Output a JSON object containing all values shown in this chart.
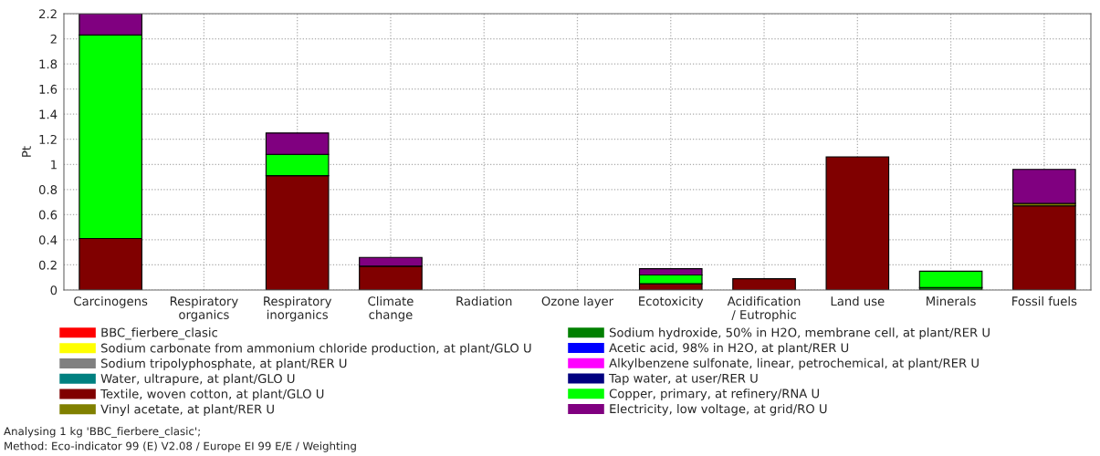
{
  "chart_data": {
    "type": "bar",
    "stacked": true,
    "ylabel": "Pt",
    "categories": [
      "Carcinogens",
      "Respiratory\norganics",
      "Respiratory\ninorganics",
      "Climate\nchange",
      "Radiation",
      "Ozone layer",
      "Ecotoxicity",
      "Acidification\n/ Eutrophic",
      "Land use",
      "Minerals",
      "Fossil fuels"
    ],
    "series": [
      {
        "name": "BBC_fierbere_clasic",
        "color": "#ff0000",
        "values": [
          0,
          0,
          0,
          0,
          0,
          0,
          0,
          0,
          0,
          0,
          0
        ]
      },
      {
        "name": "Sodium carbonate from ammonium chloride production, at plant/GLO U",
        "color": "#ffff00",
        "values": [
          0,
          0,
          0,
          0,
          0,
          0,
          0,
          0,
          0,
          0,
          0
        ]
      },
      {
        "name": "Sodium tripolyphosphate, at plant/RER U",
        "color": "#808080",
        "values": [
          0,
          0,
          0,
          0,
          0,
          0,
          0,
          0,
          0,
          0,
          0
        ]
      },
      {
        "name": "Water, ultrapure, at plant/GLO U",
        "color": "#008080",
        "values": [
          0,
          0,
          0,
          0,
          0,
          0,
          0,
          0,
          0,
          0,
          0
        ]
      },
      {
        "name": "Textile, woven cotton, at plant/GLO U",
        "color": "#800000",
        "values": [
          0.41,
          0,
          0.91,
          0.19,
          0,
          0,
          0.05,
          0.09,
          1.06,
          0,
          0.67
        ]
      },
      {
        "name": "Vinyl acetate, at plant/RER U",
        "color": "#808000",
        "values": [
          0,
          0,
          0,
          0,
          0,
          0,
          0,
          0,
          0,
          0,
          0.02
        ]
      },
      {
        "name": "Sodium hydroxide, 50% in H2O, membrane cell, at plant/RER U",
        "color": "#008000",
        "values": [
          0,
          0,
          0,
          0,
          0,
          0,
          0,
          0,
          0,
          0.02,
          0
        ]
      },
      {
        "name": "Acetic acid, 98% in H2O, at plant/RER U",
        "color": "#0000ff",
        "values": [
          0,
          0,
          0,
          0,
          0,
          0,
          0,
          0,
          0,
          0,
          0
        ]
      },
      {
        "name": "Alkylbenzene sulfonate, linear, petrochemical, at plant/RER U",
        "color": "#ff00ff",
        "values": [
          0,
          0,
          0,
          0,
          0,
          0,
          0,
          0,
          0,
          0,
          0
        ]
      },
      {
        "name": "Tap water, at user/RER U",
        "color": "#000080",
        "values": [
          0,
          0,
          0,
          0,
          0,
          0,
          0,
          0,
          0,
          0,
          0
        ]
      },
      {
        "name": "Copper, primary, at refinery/RNA U",
        "color": "#00ff00",
        "values": [
          1.62,
          0,
          0.17,
          0,
          0,
          0,
          0.07,
          0,
          0,
          0.13,
          0
        ]
      },
      {
        "name": "Electricity, low voltage, at grid/RO U",
        "color": "#800080",
        "values": [
          0.17,
          0,
          0.17,
          0.07,
          0,
          0,
          0.05,
          0,
          0,
          0,
          0.27
        ]
      }
    ],
    "ylim": [
      0,
      2.2
    ],
    "yticks": [
      0,
      0.2,
      0.4,
      0.6,
      0.8,
      1,
      1.2,
      1.4,
      1.6,
      1.8,
      2,
      2.2
    ],
    "grid": true,
    "legend": "bottom",
    "annotations": [
      "Analysing 1 kg 'BBC_fierbere_clasic';",
      "Method: Eco-indicator 99 (E) V2.08 / Europe EI 99 E/E / Weighting"
    ]
  }
}
